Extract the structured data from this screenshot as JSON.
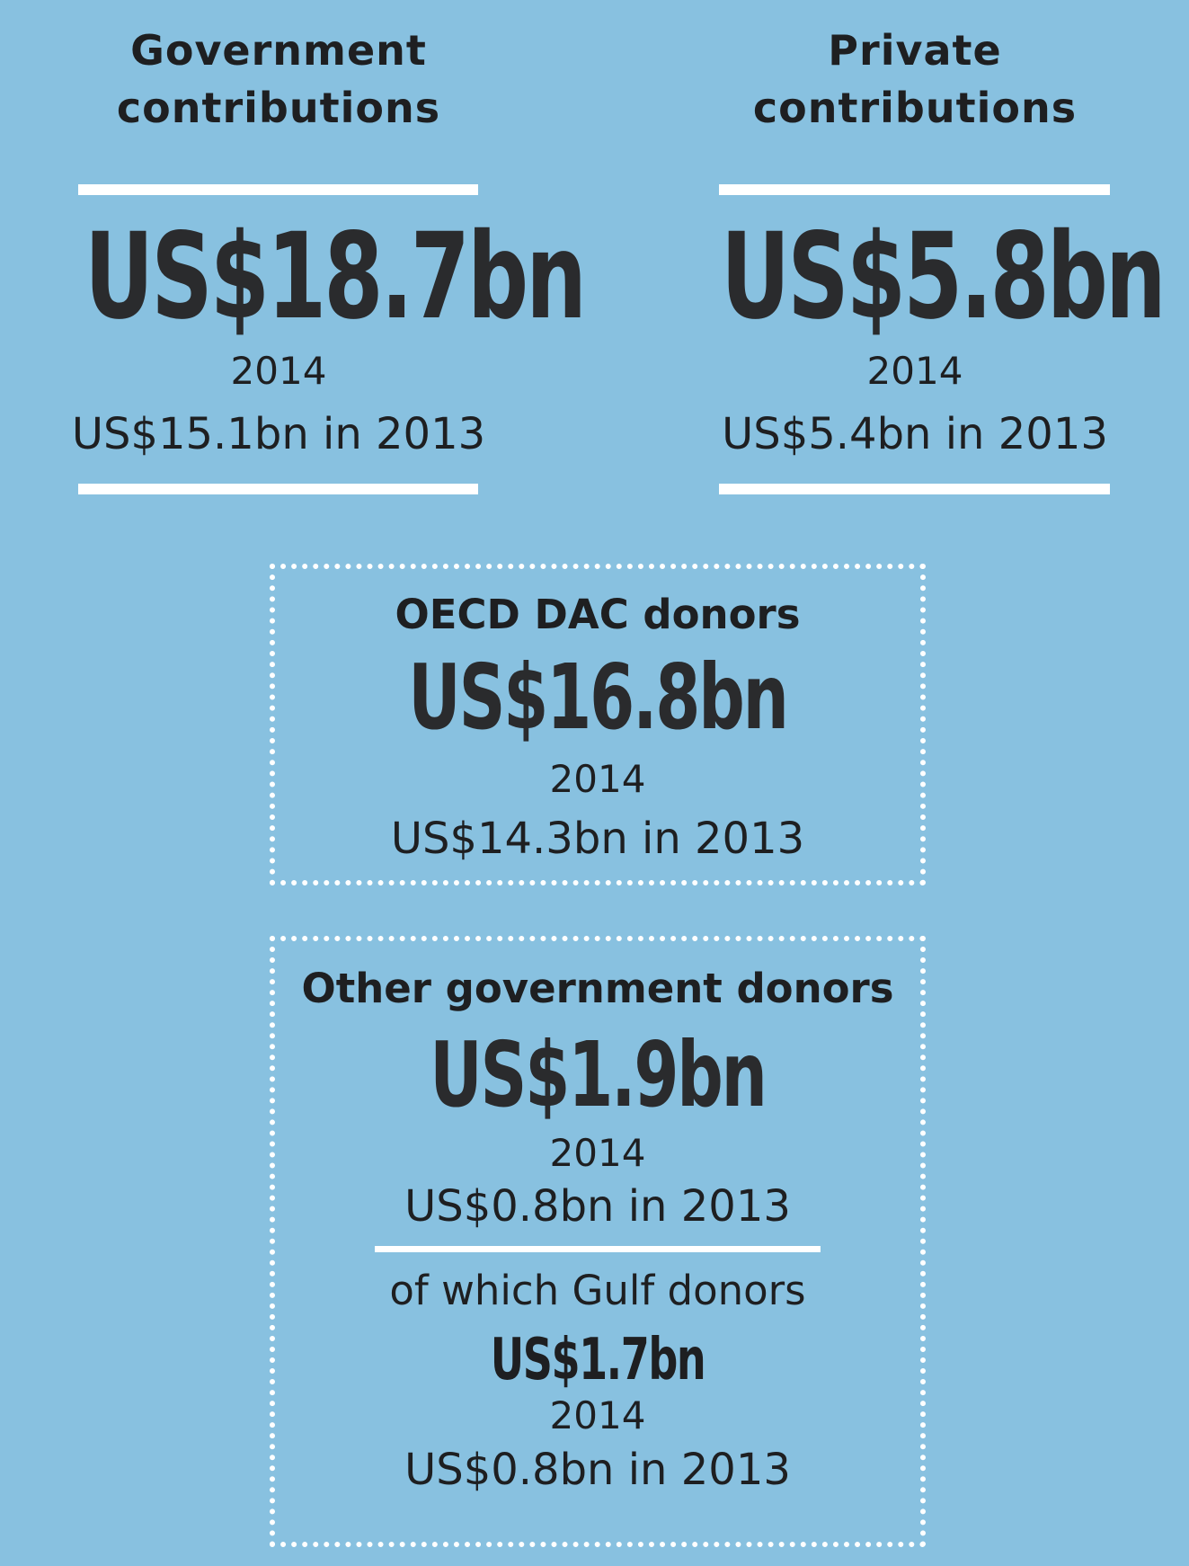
{
  "government": {
    "title_line1": "Government",
    "title_line2": "contributions",
    "amount_2014": "US$18.7bn",
    "year": "2014",
    "previous": "US$15.1bn in 2013"
  },
  "private": {
    "title_line1": "Private",
    "title_line2": "contributions",
    "amount_2014": "US$5.8bn",
    "year": "2014",
    "previous": "US$5.4bn in 2013"
  },
  "oecd": {
    "title": "OECD DAC donors",
    "amount_2014": "US$16.8bn",
    "year": "2014",
    "previous": "US$14.3bn in 2013"
  },
  "other_government": {
    "title": "Other government donors",
    "amount_2014": "US$1.9bn",
    "year": "2014",
    "previous": "US$0.8bn in 2013",
    "gulf": {
      "title": "of which Gulf donors",
      "amount_2014": "US$1.7bn",
      "year": "2014",
      "previous": "US$0.8bn in 2013"
    }
  },
  "colors": {
    "background": "#88c1e0",
    "text": "#1e1f21",
    "rules": "#ffffff"
  }
}
